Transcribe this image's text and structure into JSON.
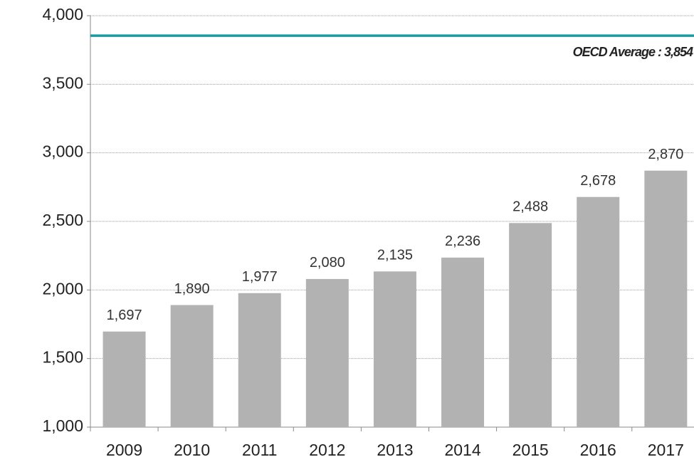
{
  "chart_data": {
    "type": "bar",
    "categories": [
      "2009",
      "2010",
      "2011",
      "2012",
      "2013",
      "2014",
      "2015",
      "2016",
      "2017"
    ],
    "values": [
      1697,
      1890,
      1977,
      2080,
      2135,
      2236,
      2488,
      2678,
      2870
    ],
    "value_labels": [
      "1,697",
      "1,890",
      "1,977",
      "2,080",
      "2,135",
      "2,236",
      "2,488",
      "2,678",
      "2,870"
    ],
    "color": "#b2b2b2",
    "ylim": [
      1000,
      4000
    ],
    "yticks": [
      {
        "value": 1000,
        "label": "1,000"
      },
      {
        "value": 1500,
        "label": "1,500"
      },
      {
        "value": 2000,
        "label": "2,000"
      },
      {
        "value": 2500,
        "label": "2,500"
      },
      {
        "value": 3000,
        "label": "3,000"
      },
      {
        "value": 3500,
        "label": "3,500"
      },
      {
        "value": 4000,
        "label": "4,000"
      }
    ],
    "grid": true,
    "reference_line": {
      "value": 3854,
      "label": "OECD Average : 3,854",
      "color": "#1a9ba0"
    }
  }
}
